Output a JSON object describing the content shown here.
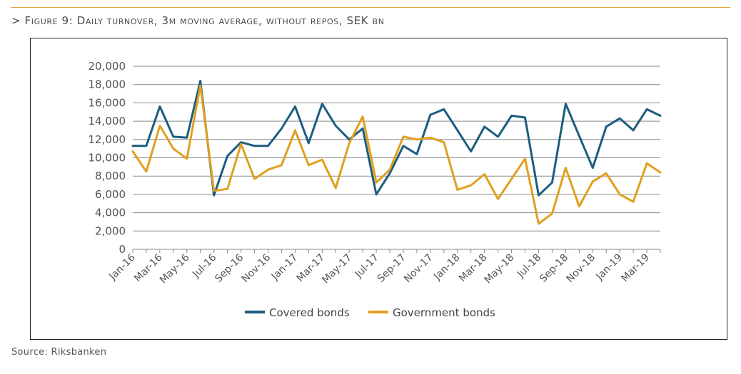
{
  "figure": {
    "title": "> Figure 9: Daily turnover, 3m moving average, without repos, SEK bn",
    "source": "Source: Riksbanken",
    "accent": "#e0a73a"
  },
  "chart_data": {
    "type": "line",
    "title": "",
    "xlabel": "",
    "ylabel": "",
    "ylim": [
      0,
      20000
    ],
    "yticks": [
      0,
      2000,
      4000,
      6000,
      8000,
      10000,
      12000,
      14000,
      16000,
      18000,
      20000
    ],
    "ytick_labels": [
      "0",
      "2,000",
      "4,000",
      "6,000",
      "8,000",
      "10,000",
      "12,000",
      "14,000",
      "16,000",
      "18,000",
      "20,000"
    ],
    "x": [
      "Jan-16",
      "Feb-16",
      "Mar-16",
      "Apr-16",
      "May-16",
      "Jun-16",
      "Jul-16",
      "Aug-16",
      "Sep-16",
      "Oct-16",
      "Nov-16",
      "Dec-16",
      "Jan-17",
      "Feb-17",
      "Mar-17",
      "Apr-17",
      "May-17",
      "Jun-17",
      "Jul-17",
      "Aug-17",
      "Sep-17",
      "Oct-17",
      "Nov-17",
      "Dec-17",
      "Jan-18",
      "Feb-18",
      "Mar-18",
      "Apr-18",
      "May-18",
      "Jun-18",
      "Jul-18",
      "Aug-18",
      "Sep-18",
      "Oct-18",
      "Nov-18",
      "Dec-18",
      "Jan-19",
      "Feb-19",
      "Mar-19",
      "Apr-19"
    ],
    "xtick_labels": [
      "Jan-16",
      "Mar-16",
      "May-16",
      "Jul-16",
      "Sep-16",
      "Nov-16",
      "Jan-17",
      "Mar-17",
      "May-17",
      "Jul-17",
      "Sep-17",
      "Nov-17",
      "Jan-18",
      "Mar-18",
      "May-18",
      "Jul-18",
      "Sep-18",
      "Nov-18",
      "Jan-19",
      "Mar-19"
    ],
    "grid": "horizontal",
    "legend_position": "bottom",
    "series": [
      {
        "name": "Covered bonds",
        "color": "#1b5d7e",
        "values": [
          11300,
          11300,
          15600,
          12300,
          12200,
          18400,
          5900,
          10200,
          11700,
          11300,
          11300,
          13200,
          15600,
          11600,
          15900,
          13500,
          12000,
          13200,
          6000,
          8300,
          11300,
          10400,
          14700,
          15300,
          13000,
          10700,
          13400,
          12300,
          14600,
          14400,
          5900,
          7300,
          15900,
          12400,
          8900,
          13400,
          14300,
          13000,
          15300,
          14600
        ]
      },
      {
        "name": "Government bonds",
        "color": "#e0a01e",
        "values": [
          10700,
          8500,
          13500,
          11000,
          9900,
          17900,
          6400,
          6600,
          11500,
          7700,
          8700,
          9200,
          13000,
          9200,
          9800,
          6700,
          11600,
          14500,
          7300,
          8700,
          12300,
          12000,
          12200,
          11700,
          6500,
          7000,
          8200,
          5500,
          7700,
          9900,
          2800,
          3900,
          8900,
          4700,
          7400,
          8300,
          6000,
          5200,
          9400,
          8400
        ]
      }
    ]
  }
}
